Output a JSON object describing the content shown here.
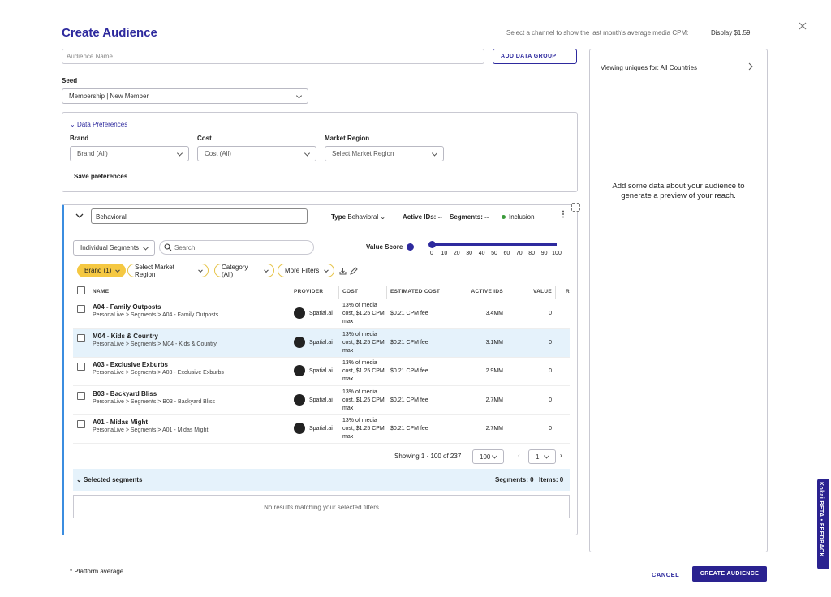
{
  "header": {
    "title": "Create Audience",
    "cpm_prompt": "Select a channel to show the last month's average media CPM:",
    "cpm_channel": "Display $1.59"
  },
  "form": {
    "audience_name_placeholder": "Audience Name",
    "add_data_group": "ADD DATA GROUP",
    "seed_label": "Seed",
    "seed_value": "Membership | New Member"
  },
  "preferences": {
    "toggle": "Data Preferences",
    "fields": [
      {
        "label": "Brand",
        "value": "Brand (All)"
      },
      {
        "label": "Cost",
        "value": "Cost (All)"
      },
      {
        "label": "Market Region",
        "value": "Select Market Region"
      }
    ],
    "save": "Save preferences"
  },
  "group": {
    "name": "Behavioral",
    "type_label": "Type",
    "type_value": "Behavioral",
    "active_ids": "Active IDs: --",
    "segments": "Segments: --",
    "inclusion": "Inclusion",
    "segment_mode": "Individual Segments",
    "search_placeholder": "Search",
    "value_score_label": "Value Score",
    "value_score_ticks": [
      0,
      10,
      20,
      30,
      40,
      50,
      60,
      70,
      80,
      90,
      100
    ],
    "filters": [
      "Brand (1)",
      "Select Market Region",
      "Category (All)",
      "More Filters"
    ],
    "columns": [
      "NAME",
      "PROVIDER",
      "COST",
      "ESTIMATED COST",
      "ACTIVE IDS",
      "VALUE",
      "R"
    ],
    "rows": [
      {
        "name": "A04 - Family Outposts",
        "path": "PersonaLive > Segments > A04 - Family Outposts",
        "provider": "Spatial.ai",
        "cost": "13% of media cost, $1.25 CPM max",
        "estimated_cost": "$0.21 CPM fee",
        "active_ids": "3.4MM",
        "value": 0
      },
      {
        "name": "M04 - Kids & Country",
        "path": "PersonaLive > Segments > M04 - Kids & Country",
        "provider": "Spatial.ai",
        "cost": "13% of media cost, $1.25 CPM max",
        "estimated_cost": "$0.21 CPM fee",
        "active_ids": "3.1MM",
        "value": 0
      },
      {
        "name": "A03 - Exclusive Exburbs",
        "path": "PersonaLive > Segments > A03 - Exclusive Exburbs",
        "provider": "Spatial.ai",
        "cost": "13% of media cost, $1.25 CPM max",
        "estimated_cost": "$0.21 CPM fee",
        "active_ids": "2.9MM",
        "value": 0
      },
      {
        "name": "B03 - Backyard Bliss",
        "path": "PersonaLive > Segments > B03 - Backyard Bliss",
        "provider": "Spatial.ai",
        "cost": "13% of media cost, $1.25 CPM max",
        "estimated_cost": "$0.21 CPM fee",
        "active_ids": "2.7MM",
        "value": 0
      },
      {
        "name": "A01 - Midas Might",
        "path": "PersonaLive > Segments > A01 - Midas Might",
        "provider": "Spatial.ai",
        "cost": "13% of media cost, $1.25 CPM max",
        "estimated_cost": "$0.21 CPM fee",
        "active_ids": "2.7MM",
        "value": 0
      }
    ],
    "pagination": {
      "showing": "Showing 1 - 100 of 237",
      "page_size": "100",
      "page": "1"
    },
    "selected": {
      "title": "Selected segments",
      "segments": "Segments: 0",
      "items": "Items: 0",
      "empty": "No results matching your selected filters"
    }
  },
  "preview": {
    "viewing": "Viewing uniques for: All Countries",
    "message": "Add some data about your audience to generate a preview of your reach."
  },
  "footer": {
    "note": "* Platform average",
    "cancel": "CANCEL",
    "create": "CREATE AUDIENCE"
  },
  "feedback_tab": "Kokai BETA • FEEDBACK"
}
